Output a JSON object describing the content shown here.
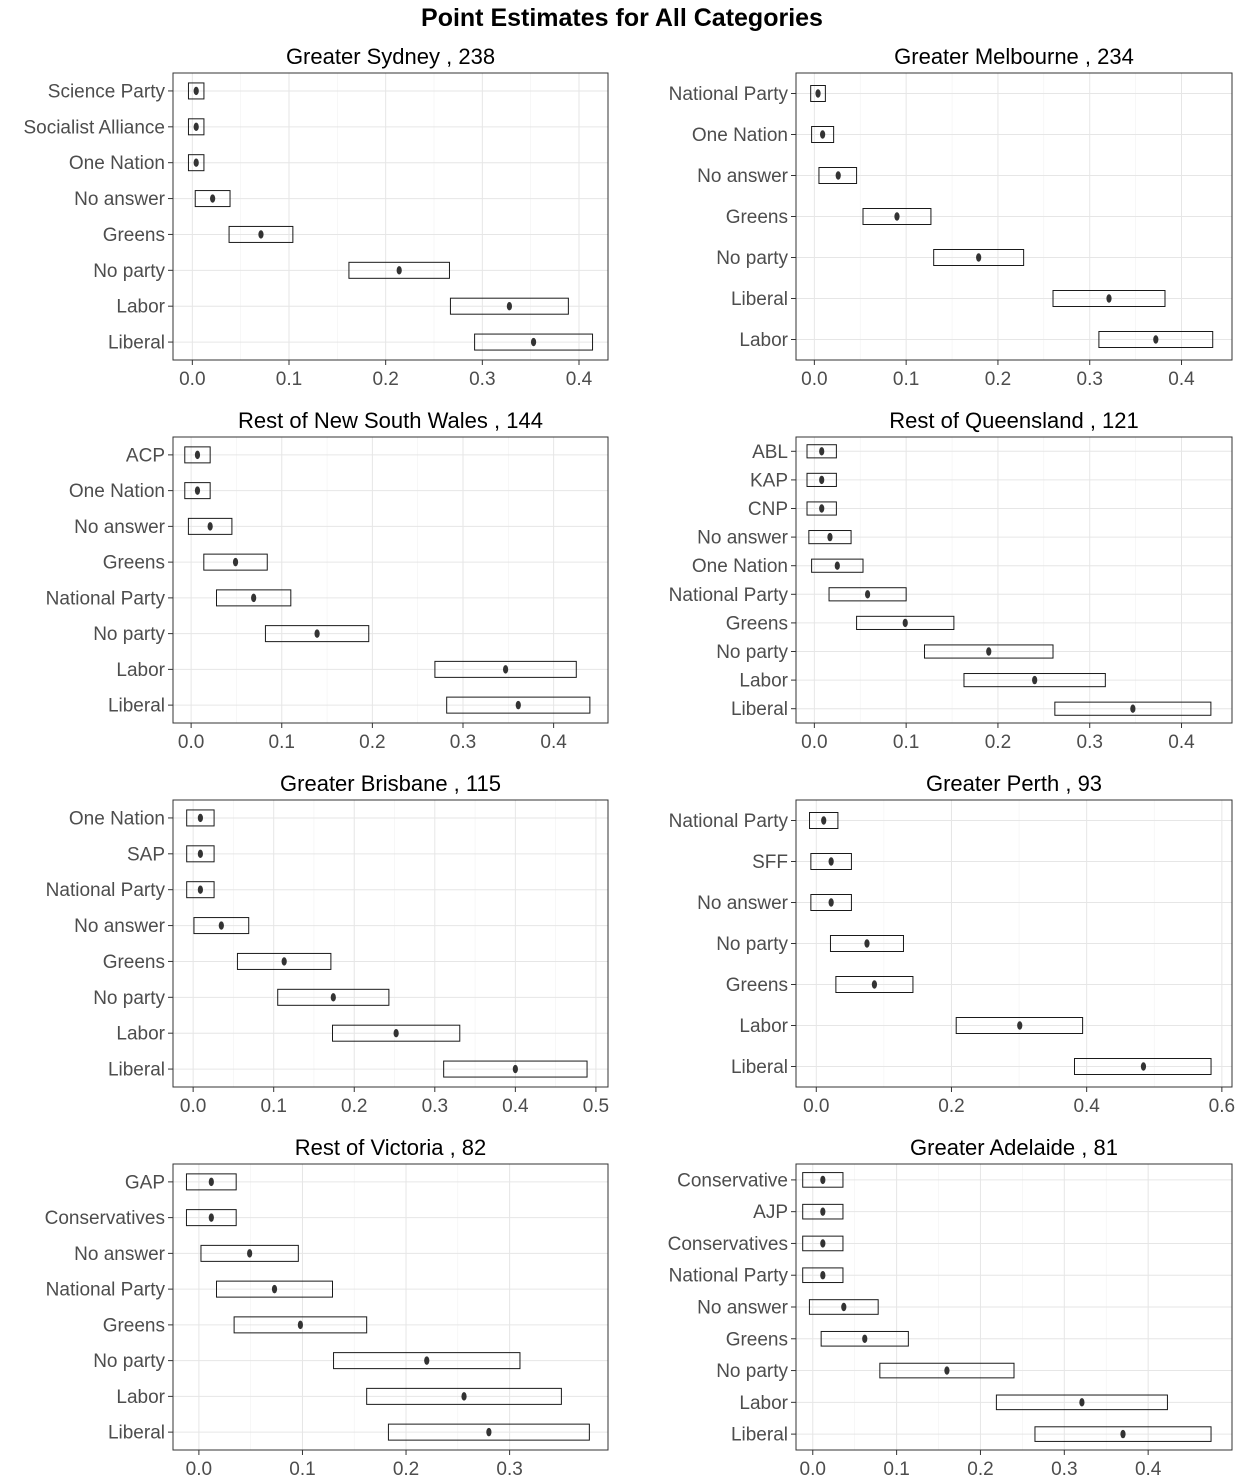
{
  "title": "Point Estimates for All Categories",
  "chart_data": [
    {
      "type": "interval",
      "title": "Greater Sydney ,  238",
      "xlim": [
        -0.02,
        0.43
      ],
      "xticks": [
        0.0,
        0.1,
        0.2,
        0.3,
        0.4
      ],
      "xtick_labels": [
        "0.0",
        "0.1",
        "0.2",
        "0.3",
        "0.4"
      ],
      "categories": [
        "Science Party",
        "Socialist Alliance",
        "One Nation",
        "No answer",
        "Greens",
        "No party",
        "Labor",
        "Liberal"
      ],
      "estimates": [
        0.004,
        0.004,
        0.004,
        0.021,
        0.071,
        0.214,
        0.328,
        0.353
      ],
      "lower": [
        -0.004,
        -0.004,
        -0.004,
        0.003,
        0.038,
        0.162,
        0.267,
        0.292
      ],
      "upper": [
        0.012,
        0.012,
        0.012,
        0.039,
        0.104,
        0.266,
        0.389,
        0.414
      ],
      "grid": true
    },
    {
      "type": "interval",
      "title": "Greater Melbourne ,  234",
      "xlim": [
        -0.02,
        0.455
      ],
      "xticks": [
        0.0,
        0.1,
        0.2,
        0.3,
        0.4
      ],
      "xtick_labels": [
        "0.0",
        "0.1",
        "0.2",
        "0.3",
        "0.4"
      ],
      "categories": [
        "National Party",
        "One Nation",
        "No answer",
        "Greens",
        "No party",
        "Liberal",
        "Labor"
      ],
      "estimates": [
        0.004,
        0.009,
        0.026,
        0.09,
        0.179,
        0.321,
        0.372
      ],
      "lower": [
        -0.004,
        -0.003,
        0.005,
        0.053,
        0.13,
        0.26,
        0.31
      ],
      "upper": [
        0.012,
        0.021,
        0.046,
        0.127,
        0.228,
        0.382,
        0.434
      ],
      "grid": true
    },
    {
      "type": "interval",
      "title": "Rest of New South Wales ,  144",
      "xlim": [
        -0.02,
        0.46
      ],
      "xticks": [
        0.0,
        0.1,
        0.2,
        0.3,
        0.4
      ],
      "xtick_labels": [
        "0.0",
        "0.1",
        "0.2",
        "0.3",
        "0.4"
      ],
      "categories": [
        "ACP",
        "One Nation",
        "No answer",
        "Greens",
        "National Party",
        "No party",
        "Labor",
        "Liberal"
      ],
      "estimates": [
        0.007,
        0.007,
        0.021,
        0.049,
        0.069,
        0.139,
        0.347,
        0.361
      ],
      "lower": [
        -0.007,
        -0.007,
        -0.003,
        0.014,
        0.028,
        0.082,
        0.269,
        0.282
      ],
      "upper": [
        0.021,
        0.021,
        0.045,
        0.084,
        0.11,
        0.196,
        0.425,
        0.44
      ],
      "grid": true
    },
    {
      "type": "interval",
      "title": "Rest of Queensland ,  121",
      "xlim": [
        -0.02,
        0.455
      ],
      "xticks": [
        0.0,
        0.1,
        0.2,
        0.3,
        0.4
      ],
      "xtick_labels": [
        "0.0",
        "0.1",
        "0.2",
        "0.3",
        "0.4"
      ],
      "categories": [
        "ABL",
        "KAP",
        "CNP",
        "No answer",
        "One Nation",
        "National Party",
        "Greens",
        "No party",
        "Labor",
        "Liberal"
      ],
      "estimates": [
        0.008,
        0.008,
        0.008,
        0.017,
        0.025,
        0.058,
        0.099,
        0.19,
        0.24,
        0.347
      ],
      "lower": [
        -0.008,
        -0.008,
        -0.008,
        -0.006,
        -0.003,
        0.016,
        0.046,
        0.12,
        0.163,
        0.262
      ],
      "upper": [
        0.024,
        0.024,
        0.024,
        0.04,
        0.053,
        0.1,
        0.152,
        0.26,
        0.317,
        0.432
      ],
      "grid": true
    },
    {
      "type": "interval",
      "title": "Greater Brisbane ,  115",
      "xlim": [
        -0.025,
        0.515
      ],
      "xticks": [
        0.0,
        0.1,
        0.2,
        0.3,
        0.4,
        0.5
      ],
      "xtick_labels": [
        "0.0",
        "0.1",
        "0.2",
        "0.3",
        "0.4",
        "0.5"
      ],
      "categories": [
        "One Nation",
        "SAP",
        "National Party",
        "No answer",
        "Greens",
        "No party",
        "Labor",
        "Liberal"
      ],
      "estimates": [
        0.009,
        0.009,
        0.009,
        0.035,
        0.113,
        0.174,
        0.252,
        0.4
      ],
      "lower": [
        -0.008,
        -0.008,
        -0.008,
        0.001,
        0.055,
        0.105,
        0.173,
        0.311
      ],
      "upper": [
        0.026,
        0.026,
        0.026,
        0.069,
        0.171,
        0.243,
        0.331,
        0.489
      ],
      "grid": true
    },
    {
      "type": "interval",
      "title": "Greater Perth ,  93",
      "xlim": [
        -0.03,
        0.615
      ],
      "xticks": [
        0.0,
        0.2,
        0.4,
        0.6
      ],
      "xtick_labels": [
        "0.0",
        "0.2",
        "0.4",
        "0.6"
      ],
      "categories": [
        "National Party",
        "SFF",
        "No answer",
        "No party",
        "Greens",
        "Labor",
        "Liberal"
      ],
      "estimates": [
        0.011,
        0.022,
        0.022,
        0.075,
        0.086,
        0.301,
        0.484
      ],
      "lower": [
        -0.01,
        -0.008,
        -0.008,
        0.021,
        0.029,
        0.207,
        0.382
      ],
      "upper": [
        0.032,
        0.052,
        0.052,
        0.129,
        0.143,
        0.394,
        0.584
      ],
      "grid": true
    },
    {
      "type": "interval",
      "title": "Rest of Victoria ,  82",
      "xlim": [
        -0.025,
        0.395
      ],
      "xticks": [
        0.0,
        0.1,
        0.2,
        0.3
      ],
      "xtick_labels": [
        "0.0",
        "0.1",
        "0.2",
        "0.3"
      ],
      "categories": [
        "GAP",
        "Conservatives",
        "No answer",
        "National Party",
        "Greens",
        "No party",
        "Labor",
        "Liberal"
      ],
      "estimates": [
        0.012,
        0.012,
        0.049,
        0.073,
        0.098,
        0.22,
        0.256,
        0.28
      ],
      "lower": [
        -0.012,
        -0.012,
        0.002,
        0.017,
        0.034,
        0.13,
        0.162,
        0.183
      ],
      "upper": [
        0.036,
        0.036,
        0.096,
        0.129,
        0.162,
        0.31,
        0.35,
        0.377
      ],
      "grid": true
    },
    {
      "type": "interval",
      "title": "Greater Adelaide ,  81",
      "xlim": [
        -0.02,
        0.5
      ],
      "xticks": [
        0.0,
        0.1,
        0.2,
        0.3,
        0.4
      ],
      "xtick_labels": [
        "0.0",
        "0.1",
        "0.2",
        "0.3",
        "0.4"
      ],
      "categories": [
        "Conservative",
        "AJP",
        "Conservatives",
        "National Party",
        "No answer",
        "Greens",
        "No party",
        "Labor",
        "Liberal"
      ],
      "estimates": [
        0.012,
        0.012,
        0.012,
        0.012,
        0.037,
        0.062,
        0.16,
        0.321,
        0.37
      ],
      "lower": [
        -0.012,
        -0.012,
        -0.012,
        -0.012,
        -0.004,
        0.01,
        0.08,
        0.219,
        0.265
      ],
      "upper": [
        0.036,
        0.036,
        0.036,
        0.036,
        0.078,
        0.114,
        0.24,
        0.423,
        0.475
      ],
      "grid": true
    }
  ]
}
